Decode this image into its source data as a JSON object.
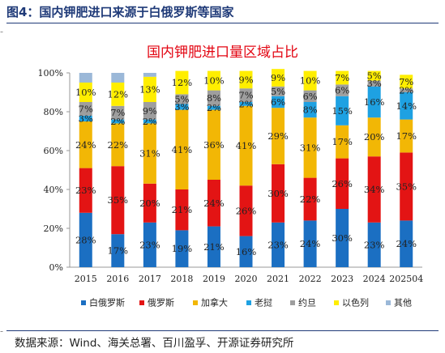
{
  "header": {
    "figure_title": "图4：国内钾肥进口来源于白俄罗斯等国家",
    "source_note": "数据来源：Wind、海关总署、百川盈孚、开源证券研究所"
  },
  "chart_data": {
    "type": "bar",
    "stacked": true,
    "percent": true,
    "title": "国内钾肥进口量区域占比",
    "categories": [
      "2015",
      "2016",
      "2017",
      "2018",
      "2019",
      "2020",
      "2021",
      "2022",
      "2023",
      "2024",
      "202504"
    ],
    "ylim": [
      0,
      100
    ],
    "yticks": [
      "0%",
      "20%",
      "40%",
      "60%",
      "80%",
      "100%"
    ],
    "grid": false,
    "legend_position": "bottom",
    "series": [
      {
        "name": "白俄罗斯",
        "color": "#1b6fc2",
        "values": [
          28,
          17,
          23,
          19,
          21,
          16,
          23,
          24,
          30,
          23,
          24
        ]
      },
      {
        "name": "俄罗斯",
        "color": "#e31414",
        "values": [
          23,
          35,
          20,
          21,
          24,
          26,
          30,
          22,
          26,
          34,
          35
        ]
      },
      {
        "name": "加拿大",
        "color": "#f2b705",
        "values": [
          24,
          22,
          31,
          41,
          36,
          41,
          29,
          31,
          17,
          20,
          17
        ]
      },
      {
        "name": "老挝",
        "color": "#1ea1e2",
        "values": [
          3,
          2,
          2,
          3,
          2,
          2,
          6,
          8,
          15,
          16,
          14
        ]
      },
      {
        "name": "约旦",
        "color": "#9e9e9e",
        "values": [
          7,
          7,
          9,
          5,
          8,
          7,
          5,
          6,
          6,
          3,
          2
        ]
      },
      {
        "name": "以色列",
        "color": "#ffee00",
        "values": [
          10,
          12,
          13,
          12,
          10,
          9,
          9,
          10,
          7,
          5,
          7
        ]
      },
      {
        "name": "其他",
        "color": "#9bb8d8",
        "values": [
          5,
          5,
          2,
          0,
          0,
          0,
          0,
          0,
          0,
          0,
          0
        ]
      }
    ],
    "value_labels": [
      [
        "28%",
        "23%",
        "24%",
        "3%",
        "7%",
        "10%",
        ""
      ],
      [
        "17%",
        "35%",
        "22%",
        "2%",
        "7%",
        "12%",
        ""
      ],
      [
        "23%",
        "20%",
        "31%",
        "2%",
        "9%",
        "13%",
        ""
      ],
      [
        "19%",
        "21%",
        "41%",
        "3%",
        "5%",
        "12%",
        ""
      ],
      [
        "21%",
        "24%",
        "36%",
        "2%",
        "8%",
        "10%",
        ""
      ],
      [
        "16%",
        "26%",
        "41%",
        "2%",
        "7%",
        "9%",
        ""
      ],
      [
        "23%",
        "30%",
        "29%",
        "6%",
        "5%",
        "9%",
        ""
      ],
      [
        "24%",
        "22%",
        "31%",
        "8%",
        "6%",
        "10%",
        ""
      ],
      [
        "30%",
        "26%",
        "17%",
        "15%",
        "6%",
        "7%",
        ""
      ],
      [
        "23%",
        "34%",
        "20%",
        "16%",
        "3%",
        "5%",
        ""
      ],
      [
        "24%",
        "35%",
        "17%",
        "14%",
        "2%",
        "7%",
        ""
      ]
    ]
  }
}
